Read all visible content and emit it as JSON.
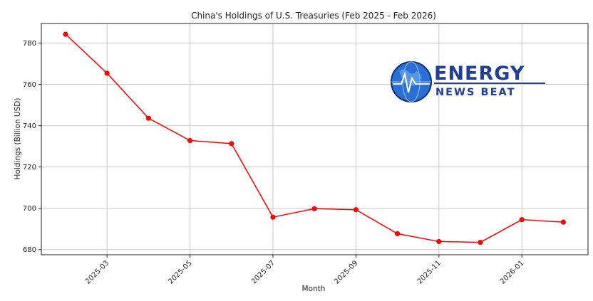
{
  "chart_data": {
    "type": "line",
    "title": "China's Holdings of U.S. Treasuries (Feb 2025 - Feb 2026)",
    "xlabel": "Month",
    "ylabel": "Holdings (Billion USD)",
    "x": [
      "2025-02",
      "2025-03",
      "2025-04",
      "2025-05",
      "2025-06",
      "2025-07",
      "2025-08",
      "2025-09",
      "2025-10",
      "2025-11",
      "2025-12",
      "2026-01",
      "2026-02"
    ],
    "series": [
      {
        "values": [
          784.3,
          765.4,
          743.6,
          732.8,
          731.3,
          695.7,
          699.8,
          699.3,
          687.7,
          683.9,
          683.5,
          694.5,
          693.3
        ],
        "color": "#ff0000"
      }
    ],
    "x_tick_labels": [
      "2025-03",
      "2025-05",
      "2025-07",
      "2025-09",
      "2025-11",
      "2026-01"
    ],
    "y_ticks": [
      680,
      700,
      720,
      740,
      760,
      780
    ],
    "ylim": [
      677.5,
      789.5
    ],
    "grid": true
  },
  "logo": {
    "line1": "ENERGY",
    "line2": "NEWS BEAT",
    "icon": "globe-icon",
    "color": "#1f3f99"
  }
}
